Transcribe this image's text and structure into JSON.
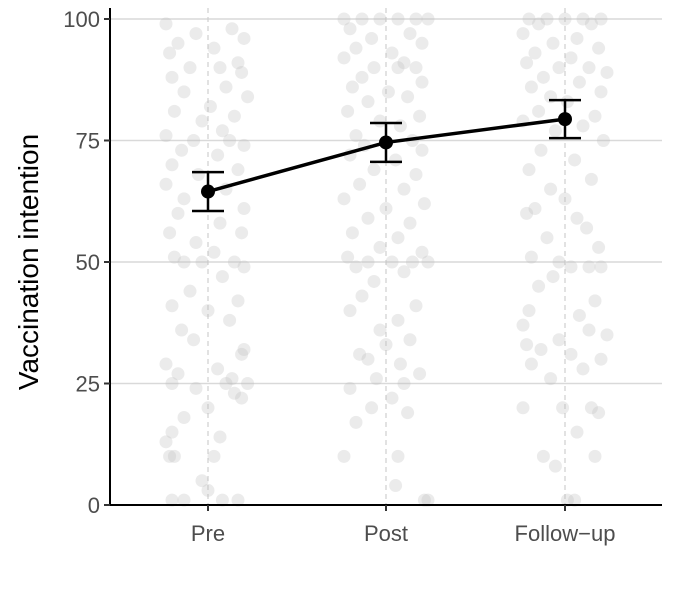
{
  "chart_data": {
    "type": "scatter",
    "title": "",
    "xlabel": "",
    "ylabel": "Vaccination intention",
    "categories": [
      "Pre",
      "Post",
      "Follow−up"
    ],
    "ylim": [
      0,
      100
    ],
    "yticks": [
      0,
      25,
      50,
      75,
      100
    ],
    "grid": "horizontal major gridlines; dashed vertical lines at categories",
    "legend": "none",
    "means": [
      64.5,
      74.6,
      79.4
    ],
    "ci_lower": [
      60.5,
      70.6,
      75.5
    ],
    "ci_upper": [
      68.5,
      78.6,
      83.3
    ],
    "colors": {
      "points": "#bdbdbd",
      "mean": "#000000",
      "grid": "#d9d9d9",
      "vline": "#cfcfcf"
    },
    "raw_points": [
      [
        {
          "x": -0.35,
          "y": 99
        },
        {
          "x": 0.2,
          "y": 98
        },
        {
          "x": -0.1,
          "y": 97
        },
        {
          "x": 0.3,
          "y": 96
        },
        {
          "x": -0.25,
          "y": 95
        },
        {
          "x": 0.05,
          "y": 94
        },
        {
          "x": -0.32,
          "y": 93
        },
        {
          "x": 0.25,
          "y": 91
        },
        {
          "x": -0.15,
          "y": 90
        },
        {
          "x": 0.1,
          "y": 90
        },
        {
          "x": 0.28,
          "y": 89
        },
        {
          "x": -0.3,
          "y": 88
        },
        {
          "x": 0.15,
          "y": 86
        },
        {
          "x": -0.2,
          "y": 85
        },
        {
          "x": 0.33,
          "y": 84
        },
        {
          "x": 0.02,
          "y": 82
        },
        {
          "x": -0.28,
          "y": 81
        },
        {
          "x": 0.22,
          "y": 80
        },
        {
          "x": -0.05,
          "y": 79
        },
        {
          "x": 0.12,
          "y": 77
        },
        {
          "x": -0.35,
          "y": 76
        },
        {
          "x": 0.18,
          "y": 75
        },
        {
          "x": -0.12,
          "y": 75
        },
        {
          "x": 0.3,
          "y": 74
        },
        {
          "x": -0.22,
          "y": 73
        },
        {
          "x": 0.08,
          "y": 72
        },
        {
          "x": -0.3,
          "y": 70
        },
        {
          "x": 0.25,
          "y": 69
        },
        {
          "x": -0.08,
          "y": 68
        },
        {
          "x": -0.35,
          "y": 66
        },
        {
          "x": 0.15,
          "y": 65
        },
        {
          "x": -0.2,
          "y": 63
        },
        {
          "x": 0.3,
          "y": 61
        },
        {
          "x": -0.25,
          "y": 60
        },
        {
          "x": 0.1,
          "y": 58
        },
        {
          "x": -0.32,
          "y": 56
        },
        {
          "x": 0.28,
          "y": 56
        },
        {
          "x": -0.1,
          "y": 54
        },
        {
          "x": 0.05,
          "y": 52
        },
        {
          "x": -0.28,
          "y": 51
        },
        {
          "x": -0.2,
          "y": 50
        },
        {
          "x": 0.22,
          "y": 50
        },
        {
          "x": -0.05,
          "y": 50
        },
        {
          "x": 0.3,
          "y": 49
        },
        {
          "x": 0.12,
          "y": 47
        },
        {
          "x": -0.15,
          "y": 44
        },
        {
          "x": 0.25,
          "y": 42
        },
        {
          "x": -0.3,
          "y": 41
        },
        {
          "x": 0.0,
          "y": 40
        },
        {
          "x": 0.18,
          "y": 38
        },
        {
          "x": -0.22,
          "y": 36
        },
        {
          "x": -0.12,
          "y": 34
        },
        {
          "x": 0.3,
          "y": 32
        },
        {
          "x": 0.28,
          "y": 31
        },
        {
          "x": -0.35,
          "y": 29
        },
        {
          "x": 0.08,
          "y": 28
        },
        {
          "x": -0.25,
          "y": 27
        },
        {
          "x": 0.2,
          "y": 26
        },
        {
          "x": -0.3,
          "y": 25
        },
        {
          "x": 0.15,
          "y": 25
        },
        {
          "x": 0.33,
          "y": 25
        },
        {
          "x": -0.1,
          "y": 24
        },
        {
          "x": 0.22,
          "y": 23
        },
        {
          "x": 0.28,
          "y": 22
        },
        {
          "x": 0.0,
          "y": 20
        },
        {
          "x": -0.2,
          "y": 18
        },
        {
          "x": -0.3,
          "y": 15
        },
        {
          "x": 0.1,
          "y": 14
        },
        {
          "x": -0.35,
          "y": 13
        },
        {
          "x": -0.32,
          "y": 10
        },
        {
          "x": -0.28,
          "y": 10
        },
        {
          "x": 0.05,
          "y": 10
        },
        {
          "x": -0.05,
          "y": 5
        },
        {
          "x": 0.0,
          "y": 3
        },
        {
          "x": -0.3,
          "y": 1
        },
        {
          "x": -0.2,
          "y": 1
        },
        {
          "x": 0.12,
          "y": 1
        },
        {
          "x": 0.25,
          "y": 1
        }
      ],
      [
        {
          "x": -0.35,
          "y": 100
        },
        {
          "x": -0.2,
          "y": 100
        },
        {
          "x": -0.05,
          "y": 100
        },
        {
          "x": 0.1,
          "y": 100
        },
        {
          "x": 0.25,
          "y": 100
        },
        {
          "x": 0.35,
          "y": 100
        },
        {
          "x": -0.3,
          "y": 98
        },
        {
          "x": 0.2,
          "y": 97
        },
        {
          "x": -0.12,
          "y": 96
        },
        {
          "x": 0.3,
          "y": 95
        },
        {
          "x": -0.25,
          "y": 94
        },
        {
          "x": 0.05,
          "y": 93
        },
        {
          "x": -0.35,
          "y": 92
        },
        {
          "x": 0.15,
          "y": 91
        },
        {
          "x": -0.1,
          "y": 90
        },
        {
          "x": 0.1,
          "y": 90
        },
        {
          "x": 0.25,
          "y": 90
        },
        {
          "x": -0.2,
          "y": 88
        },
        {
          "x": 0.3,
          "y": 87
        },
        {
          "x": -0.28,
          "y": 86
        },
        {
          "x": 0.02,
          "y": 85
        },
        {
          "x": 0.18,
          "y": 84
        },
        {
          "x": -0.15,
          "y": 83
        },
        {
          "x": -0.32,
          "y": 81
        },
        {
          "x": 0.28,
          "y": 80
        },
        {
          "x": -0.05,
          "y": 79
        },
        {
          "x": 0.12,
          "y": 78
        },
        {
          "x": -0.25,
          "y": 76
        },
        {
          "x": 0.22,
          "y": 75
        },
        {
          "x": -0.18,
          "y": 74
        },
        {
          "x": 0.3,
          "y": 73
        },
        {
          "x": -0.3,
          "y": 72
        },
        {
          "x": 0.08,
          "y": 71
        },
        {
          "x": -0.1,
          "y": 69
        },
        {
          "x": 0.25,
          "y": 68
        },
        {
          "x": -0.22,
          "y": 66
        },
        {
          "x": 0.15,
          "y": 65
        },
        {
          "x": -0.35,
          "y": 63
        },
        {
          "x": 0.32,
          "y": 62
        },
        {
          "x": 0.0,
          "y": 61
        },
        {
          "x": -0.15,
          "y": 59
        },
        {
          "x": 0.2,
          "y": 58
        },
        {
          "x": -0.28,
          "y": 56
        },
        {
          "x": 0.1,
          "y": 55
        },
        {
          "x": -0.05,
          "y": 53
        },
        {
          "x": 0.3,
          "y": 52
        },
        {
          "x": -0.32,
          "y": 51
        },
        {
          "x": -0.15,
          "y": 50
        },
        {
          "x": 0.05,
          "y": 50
        },
        {
          "x": 0.22,
          "y": 50
        },
        {
          "x": 0.35,
          "y": 50
        },
        {
          "x": -0.25,
          "y": 49
        },
        {
          "x": 0.15,
          "y": 48
        },
        {
          "x": -0.1,
          "y": 46
        },
        {
          "x": -0.2,
          "y": 43
        },
        {
          "x": 0.25,
          "y": 41
        },
        {
          "x": -0.3,
          "y": 40
        },
        {
          "x": 0.1,
          "y": 38
        },
        {
          "x": -0.05,
          "y": 36
        },
        {
          "x": 0.2,
          "y": 34
        },
        {
          "x": 0.0,
          "y": 33
        },
        {
          "x": -0.22,
          "y": 31
        },
        {
          "x": -0.15,
          "y": 30
        },
        {
          "x": 0.12,
          "y": 29
        },
        {
          "x": 0.28,
          "y": 27
        },
        {
          "x": -0.08,
          "y": 26
        },
        {
          "x": 0.15,
          "y": 25
        },
        {
          "x": -0.3,
          "y": 24
        },
        {
          "x": 0.05,
          "y": 22
        },
        {
          "x": -0.12,
          "y": 20
        },
        {
          "x": 0.18,
          "y": 19
        },
        {
          "x": -0.25,
          "y": 17
        },
        {
          "x": -0.35,
          "y": 10
        },
        {
          "x": 0.1,
          "y": 10
        },
        {
          "x": 0.08,
          "y": 4
        },
        {
          "x": 0.32,
          "y": 1
        },
        {
          "x": 0.35,
          "y": 1
        }
      ],
      [
        {
          "x": -0.3,
          "y": 100
        },
        {
          "x": -0.15,
          "y": 100
        },
        {
          "x": 0.0,
          "y": 100
        },
        {
          "x": 0.15,
          "y": 100
        },
        {
          "x": 0.3,
          "y": 100
        },
        {
          "x": -0.22,
          "y": 99
        },
        {
          "x": 0.22,
          "y": 99
        },
        {
          "x": -0.35,
          "y": 97
        },
        {
          "x": 0.1,
          "y": 96
        },
        {
          "x": -0.1,
          "y": 95
        },
        {
          "x": 0.28,
          "y": 94
        },
        {
          "x": -0.25,
          "y": 93
        },
        {
          "x": 0.05,
          "y": 92
        },
        {
          "x": -0.32,
          "y": 91
        },
        {
          "x": 0.2,
          "y": 90
        },
        {
          "x": -0.05,
          "y": 90
        },
        {
          "x": 0.35,
          "y": 89
        },
        {
          "x": -0.18,
          "y": 88
        },
        {
          "x": 0.12,
          "y": 87
        },
        {
          "x": -0.28,
          "y": 86
        },
        {
          "x": 0.3,
          "y": 85
        },
        {
          "x": -0.12,
          "y": 84
        },
        {
          "x": 0.02,
          "y": 83
        },
        {
          "x": -0.22,
          "y": 81
        },
        {
          "x": 0.25,
          "y": 80
        },
        {
          "x": -0.35,
          "y": 79
        },
        {
          "x": 0.15,
          "y": 78
        },
        {
          "x": -0.08,
          "y": 77
        },
        {
          "x": 0.32,
          "y": 75
        },
        {
          "x": -0.2,
          "y": 73
        },
        {
          "x": 0.08,
          "y": 71
        },
        {
          "x": -0.3,
          "y": 69
        },
        {
          "x": 0.22,
          "y": 67
        },
        {
          "x": -0.12,
          "y": 65
        },
        {
          "x": 0.0,
          "y": 63
        },
        {
          "x": -0.25,
          "y": 61
        },
        {
          "x": -0.32,
          "y": 60
        },
        {
          "x": 0.1,
          "y": 59
        },
        {
          "x": 0.18,
          "y": 57
        },
        {
          "x": -0.15,
          "y": 55
        },
        {
          "x": 0.28,
          "y": 53
        },
        {
          "x": -0.28,
          "y": 51
        },
        {
          "x": -0.05,
          "y": 50
        },
        {
          "x": 0.05,
          "y": 49
        },
        {
          "x": 0.2,
          "y": 49
        },
        {
          "x": 0.3,
          "y": 49
        },
        {
          "x": -0.1,
          "y": 47
        },
        {
          "x": -0.22,
          "y": 45
        },
        {
          "x": 0.25,
          "y": 42
        },
        {
          "x": -0.3,
          "y": 40
        },
        {
          "x": 0.12,
          "y": 39
        },
        {
          "x": -0.35,
          "y": 37
        },
        {
          "x": 0.2,
          "y": 36
        },
        {
          "x": 0.35,
          "y": 35
        },
        {
          "x": -0.05,
          "y": 34
        },
        {
          "x": -0.32,
          "y": 33
        },
        {
          "x": -0.2,
          "y": 32
        },
        {
          "x": 0.05,
          "y": 31
        },
        {
          "x": 0.3,
          "y": 30
        },
        {
          "x": -0.28,
          "y": 29
        },
        {
          "x": 0.15,
          "y": 28
        },
        {
          "x": -0.12,
          "y": 26
        },
        {
          "x": -0.35,
          "y": 20
        },
        {
          "x": -0.02,
          "y": 20
        },
        {
          "x": 0.22,
          "y": 20
        },
        {
          "x": 0.28,
          "y": 19
        },
        {
          "x": 0.1,
          "y": 15
        },
        {
          "x": -0.18,
          "y": 10
        },
        {
          "x": -0.08,
          "y": 8
        },
        {
          "x": 0.25,
          "y": 10
        },
        {
          "x": 0.02,
          "y": 1
        },
        {
          "x": 0.08,
          "y": 1
        }
      ]
    ]
  }
}
